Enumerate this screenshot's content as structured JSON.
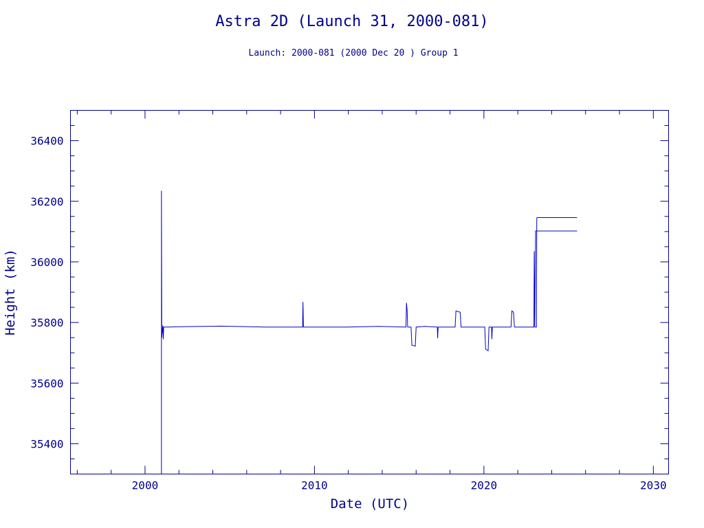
{
  "chart_data": {
    "type": "line",
    "title": "Astra 2D (Launch 31, 2000-081)",
    "subtitle": "Launch: 2000-081  (2000 Dec 20 )  Group 1",
    "xlabel": "Date (UTC)",
    "ylabel": "Height (km)",
    "xlim": [
      1995.6,
      2030.9
    ],
    "ylim": [
      35300,
      36500
    ],
    "x_ticks_major": [
      2000,
      2010,
      2020,
      2030
    ],
    "x_ticks_minor_step": 2,
    "y_ticks_major": [
      35400,
      35600,
      35800,
      36000,
      36200,
      36400
    ],
    "y_ticks_minor_step": 50,
    "grid": false,
    "colors": {
      "axes": "#00008b",
      "series": "#0000cc"
    },
    "series": [
      {
        "x": [
          2000.97,
          2000.97,
          2000.99,
          2001.05,
          2001.08,
          2001.1,
          2001.15,
          2001.3,
          2002.0,
          2004.5,
          2007.0,
          2009.3,
          2009.32,
          2009.35,
          2012.0,
          2013.8,
          2015.4,
          2015.43,
          2015.47,
          2015.5,
          2015.7,
          2015.75,
          2015.95,
          2016.0,
          2016.5,
          2017.25,
          2017.27,
          2017.3,
          2018.3,
          2018.35,
          2018.6,
          2018.65,
          2019.0,
          2020.05,
          2020.1,
          2020.25,
          2020.3,
          2020.45,
          2020.47,
          2020.5,
          2021.6,
          2021.65,
          2021.75,
          2021.8,
          2022.0,
          2022.95,
          2022.97,
          2023.0,
          2023.05,
          2025.5
        ],
        "y": [
          35300,
          36235,
          35750,
          35790,
          35745,
          35785,
          35785,
          35785,
          35786,
          35788,
          35785,
          35785,
          35868,
          35785,
          35785,
          35787,
          35785,
          35865,
          35840,
          35785,
          35785,
          35725,
          35722,
          35785,
          35787,
          35785,
          35748,
          35785,
          35785,
          35838,
          35834,
          35785,
          35785,
          35785,
          35712,
          35707,
          35785,
          35785,
          35745,
          35785,
          35785,
          35838,
          35834,
          35785,
          35785,
          35785,
          36035,
          35785,
          36102,
          36102
        ]
      },
      {
        "x": [
          2023.0,
          2023.05,
          2023.1,
          2023.12,
          2023.15,
          2025.5
        ],
        "y": [
          35785,
          35785,
          35785,
          36145,
          36146,
          36146
        ]
      }
    ]
  }
}
